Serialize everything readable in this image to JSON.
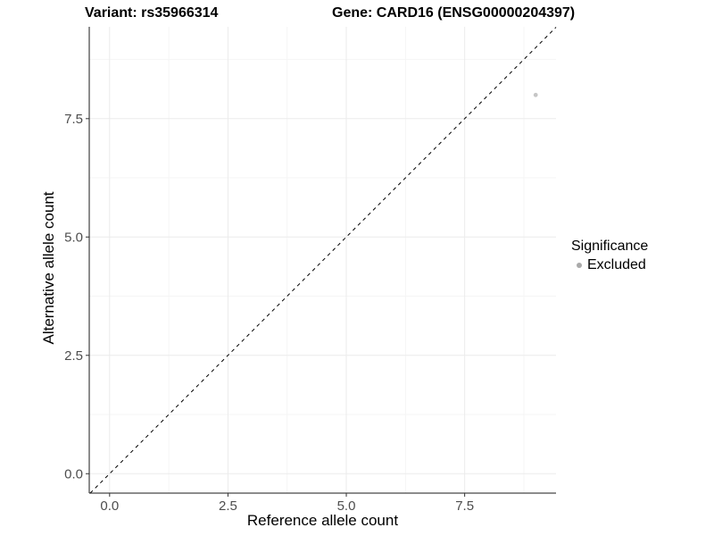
{
  "header": {
    "title_left": "Variant: rs35966314",
    "title_right": "Gene: CARD16 (ENSG00000204397)"
  },
  "chart_data": {
    "type": "scatter",
    "title": "Variant: rs35966314    Gene: CARD16 (ENSG00000204397)",
    "xlabel": "Reference allele count",
    "ylabel": "Alternative allele count",
    "xlim": [
      -0.43,
      9.43
    ],
    "ylim": [
      -0.41,
      9.44
    ],
    "x_ticks": {
      "values": [
        0,
        2.5,
        5,
        7.5
      ],
      "labels": [
        "0.0",
        "2.5",
        "5.0",
        "7.5"
      ]
    },
    "y_ticks": {
      "values": [
        0,
        2.5,
        5,
        7.5
      ],
      "labels": [
        "0.0",
        "2.5",
        "5.0",
        "7.5"
      ]
    },
    "minor_tick_values": [
      1.25,
      3.75,
      6.25,
      8.75
    ],
    "grid": true,
    "series": [
      {
        "name": "Excluded",
        "points": [
          {
            "x": 9,
            "y": 8
          }
        ]
      }
    ],
    "abline": {
      "slope": 1,
      "intercept": 0,
      "style": "dashed"
    },
    "legend": {
      "title": "Significance",
      "position": "right",
      "items": [
        {
          "label": "Excluded",
          "color": "#c6c6c6"
        }
      ]
    }
  },
  "colors": {
    "background": "#ffffff",
    "grid_major": "#ebebeb",
    "grid_minor": "#f5f5f5",
    "axis_line": "#1a1a1a",
    "tick_mark": "#333333",
    "tick_label": "#4d4d4d",
    "abline": "#000000",
    "point": "#c6c6c6",
    "legend_dot": "#aaaaaa",
    "text": "#000000"
  }
}
